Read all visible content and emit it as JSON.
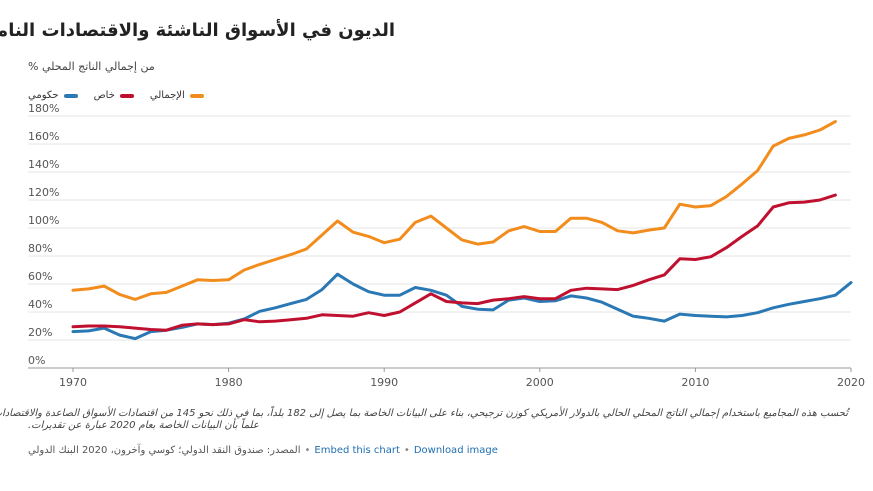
{
  "header": {
    "title": "الديون في الأسواق الناشئة والاقتصادات النامية",
    "subtitle": "من إجمالي الناتج المحلي %"
  },
  "legend": [
    {
      "label": "حكومي",
      "color": "#2a78b4"
    },
    {
      "label": "خاص",
      "color": "#c0102f"
    },
    {
      "label": "الإجمالي",
      "color": "#f28c1c"
    }
  ],
  "notes": {
    "line1": "تُحسب هذه المجاميع باستخدام إجمالي الناتج المحلي الحالي بالدولار الأمريكي كوزن ترجيحي، بناء على البيانات الخاصة بما يصل إلى 182 بلداً، بما في ذلك نحو 145 من اقتصادات الأسواق الصاعدة والاقتصادات النامية.",
    "line2": "علماً بأن البيانات الخاصة بعام 2020 عبارة عن تقديرات."
  },
  "footer": {
    "source": "المصدر: صندوق النقد الدولي؛ كوسي وآخرون، 2020 البنك الدولي",
    "separator": "•",
    "embed_label": "Embed this chart",
    "download_label": "Download image"
  },
  "chart_data": {
    "type": "line",
    "title": "الديون في الأسواق الناشئة والاقتصادات النامية",
    "ylabel": "من إجمالي الناتج المحلي %",
    "xlim": [
      1970,
      2020
    ],
    "ylim": [
      0,
      180
    ],
    "x_ticks": [
      1970,
      1980,
      1990,
      2000,
      2010,
      2020
    ],
    "y_ticks": [
      0,
      20,
      40,
      60,
      80,
      100,
      120,
      140,
      160,
      180
    ],
    "y_tick_labels": [
      "0%",
      "20%",
      "40%",
      "60%",
      "80%",
      "100%",
      "120%",
      "140%",
      "160%",
      "180%"
    ],
    "grid": true,
    "legend_position": "top-left",
    "x": [
      1970,
      1971,
      1972,
      1973,
      1974,
      1975,
      1976,
      1977,
      1978,
      1979,
      1980,
      1981,
      1982,
      1983,
      1984,
      1985,
      1986,
      1987,
      1988,
      1989,
      1990,
      1991,
      1992,
      1993,
      1994,
      1995,
      1996,
      1997,
      1998,
      1999,
      2000,
      2001,
      2002,
      2003,
      2004,
      2005,
      2006,
      2007,
      2008,
      2009,
      2010,
      2011,
      2012,
      2013,
      2014,
      2015,
      2016,
      2017,
      2018,
      2019,
      2020
    ],
    "series": [
      {
        "name": "حكومي",
        "color": "#2a78b4",
        "values": [
          26,
          26.5,
          28.5,
          23.5,
          21,
          26,
          27,
          29,
          31.5,
          31,
          32,
          35,
          40.5,
          43,
          46,
          49,
          56,
          67,
          60,
          54.5,
          52,
          52,
          57.5,
          55.5,
          52,
          44,
          42,
          41.5,
          48.5,
          50,
          47.5,
          48,
          51.5,
          50,
          47,
          42,
          37,
          35.5,
          33.5,
          38.5,
          37.5,
          37,
          36.5,
          37.5,
          39.5,
          43,
          45.5,
          47.5,
          49.5,
          52,
          61
        ]
      },
      {
        "name": "خاص",
        "color": "#c0102f",
        "values": [
          29.5,
          30,
          30,
          29.5,
          28.5,
          27.5,
          27,
          30.5,
          31.5,
          31,
          31.5,
          34.5,
          33,
          33.5,
          34.5,
          35.5,
          38,
          37.5,
          37,
          39.5,
          37.5,
          40,
          46.5,
          53,
          47.5,
          46.5,
          46,
          48.5,
          49.5,
          51,
          49.5,
          49.5,
          55.5,
          57,
          56.5,
          56,
          59,
          63,
          66.5,
          78,
          77.5,
          79.5,
          86,
          94,
          101.5,
          115,
          118,
          118.5,
          120,
          123.5,
          null
        ]
      },
      {
        "name": "الإجمالي",
        "color": "#f28c1c",
        "values": [
          55.5,
          56.5,
          58.5,
          52.5,
          49,
          53,
          54,
          58.5,
          63,
          62.5,
          63,
          70,
          74,
          77.5,
          81,
          85,
          95,
          105,
          97,
          94,
          89.5,
          92,
          104,
          108.5,
          100,
          91.5,
          88.5,
          90,
          98,
          101,
          97.5,
          97.5,
          107,
          107,
          104,
          98,
          96.5,
          98.5,
          100,
          117,
          115,
          116,
          122.5,
          131.5,
          141,
          158.5,
          164,
          166.5,
          170,
          176,
          null
        ]
      }
    ]
  }
}
